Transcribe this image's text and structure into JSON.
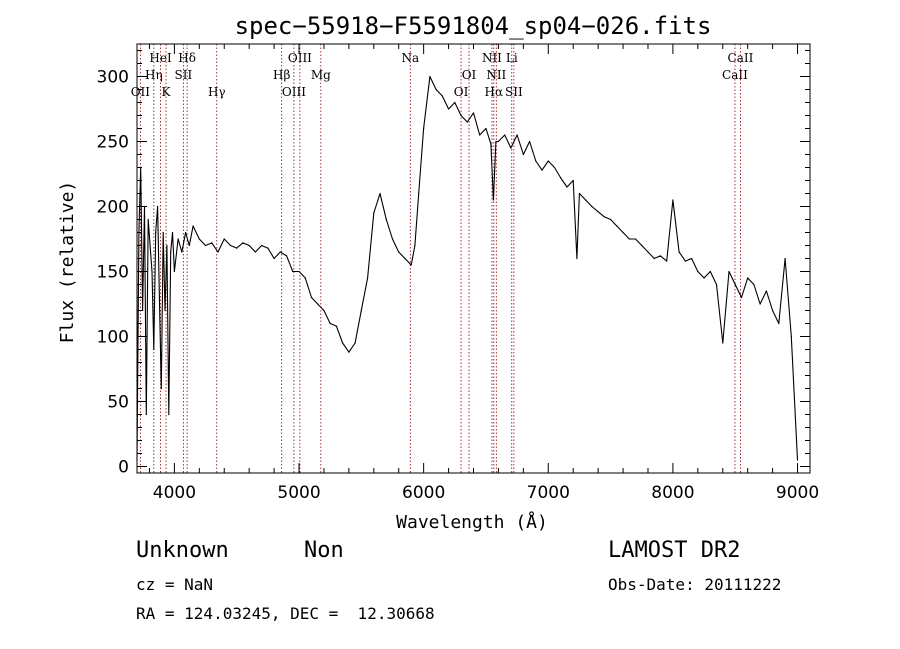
{
  "chart_data": {
    "type": "line",
    "title": "spec−55918−F5591804_sp04−026.fits",
    "xlabel": "Wavelength (Å)",
    "ylabel": "Flux (relative)",
    "xlim": [
      3700,
      9100
    ],
    "ylim": [
      -5,
      325
    ],
    "xticks": [
      4000,
      5000,
      6000,
      7000,
      8000,
      9000
    ],
    "yticks": [
      0,
      50,
      100,
      150,
      200,
      250,
      300
    ],
    "grid": false,
    "line_color": "#000000",
    "marker_color": "#8b0000",
    "series": [
      {
        "x": [
          3700,
          3715,
          3730,
          3745,
          3760,
          3775,
          3790,
          3805,
          3820,
          3835,
          3850,
          3865,
          3880,
          3895,
          3910,
          3925,
          3940,
          3955,
          3970,
          3985,
          4000,
          4030,
          4060,
          4090,
          4120,
          4150,
          4200,
          4250,
          4300,
          4350,
          4400,
          4450,
          4500,
          4550,
          4600,
          4650,
          4700,
          4750,
          4800,
          4850,
          4900,
          4950,
          5000,
          5050,
          5100,
          5150,
          5200,
          5250,
          5300,
          5350,
          5400,
          5450,
          5500,
          5550,
          5600,
          5650,
          5700,
          5750,
          5800,
          5850,
          5900,
          5930,
          5960,
          6000,
          6050,
          6100,
          6150,
          6200,
          6250,
          6300,
          6350,
          6400,
          6450,
          6500,
          6540,
          6560,
          6580,
          6600,
          6650,
          6700,
          6750,
          6800,
          6850,
          6900,
          6950,
          7000,
          7050,
          7100,
          7150,
          7200,
          7230,
          7250,
          7300,
          7350,
          7400,
          7450,
          7500,
          7550,
          7600,
          7650,
          7700,
          7750,
          7800,
          7850,
          7900,
          7950,
          8000,
          8050,
          8100,
          8150,
          8200,
          8250,
          8300,
          8350,
          8400,
          8450,
          8500,
          8550,
          8600,
          8650,
          8700,
          8750,
          8800,
          8850,
          8900,
          8950,
          9000
        ],
        "values": [
          5,
          180,
          230,
          120,
          200,
          40,
          190,
          170,
          150,
          90,
          180,
          200,
          130,
          60,
          180,
          120,
          170,
          40,
          165,
          180,
          150,
          175,
          165,
          180,
          170,
          185,
          175,
          170,
          172,
          165,
          175,
          170,
          168,
          172,
          170,
          165,
          170,
          168,
          160,
          165,
          162,
          150,
          150,
          145,
          130,
          125,
          120,
          110,
          108,
          95,
          88,
          95,
          120,
          145,
          195,
          210,
          190,
          175,
          165,
          160,
          155,
          170,
          210,
          260,
          300,
          290,
          285,
          275,
          280,
          270,
          265,
          272,
          255,
          260,
          248,
          205,
          250,
          250,
          255,
          245,
          255,
          240,
          250,
          235,
          228,
          235,
          230,
          222,
          215,
          220,
          160,
          210,
          205,
          200,
          196,
          192,
          190,
          185,
          180,
          175,
          175,
          170,
          165,
          160,
          162,
          158,
          205,
          165,
          158,
          160,
          150,
          145,
          150,
          140,
          95,
          150,
          140,
          130,
          145,
          140,
          125,
          135,
          120,
          110,
          160,
          100,
          5
        ]
      }
    ],
    "lines": [
      {
        "x": 3727,
        "labels": [
          {
            "text": "OII",
            "row": 3
          }
        ]
      },
      {
        "x": 3835,
        "labels": [
          {
            "text": "Hη",
            "row": 2
          }
        ]
      },
      {
        "x": 3889,
        "labels": [
          {
            "text": "HeI",
            "row": 1
          }
        ]
      },
      {
        "x": 3933,
        "labels": [
          {
            "text": "K",
            "row": 3
          }
        ]
      },
      {
        "x": 4072,
        "labels": [
          {
            "text": "SII",
            "row": 2
          }
        ]
      },
      {
        "x": 4102,
        "labels": [
          {
            "text": "Hδ",
            "row": 1
          }
        ]
      },
      {
        "x": 4340,
        "labels": [
          {
            "text": "Hγ",
            "row": 3
          }
        ]
      },
      {
        "x": 4861,
        "labels": [
          {
            "text": "Hβ",
            "row": 2
          }
        ]
      },
      {
        "x": 4959,
        "labels": [
          {
            "text": "OIII",
            "row": 3
          }
        ]
      },
      {
        "x": 5007,
        "labels": [
          {
            "text": "OIII",
            "row": 1
          }
        ]
      },
      {
        "x": 5175,
        "labels": [
          {
            "text": "Mg",
            "row": 2
          }
        ]
      },
      {
        "x": 5893,
        "labels": [
          {
            "text": "Na",
            "row": 1
          }
        ]
      },
      {
        "x": 6300,
        "labels": [
          {
            "text": "OI",
            "row": 3
          }
        ]
      },
      {
        "x": 6364,
        "labels": [
          {
            "text": "OI",
            "row": 2
          }
        ]
      },
      {
        "x": 6548,
        "labels": [
          {
            "text": "NII",
            "row": 1
          }
        ]
      },
      {
        "x": 6563,
        "labels": [
          {
            "text": "Hα",
            "row": 3
          }
        ]
      },
      {
        "x": 6583,
        "labels": [
          {
            "text": "NII",
            "row": 2
          }
        ]
      },
      {
        "x": 6707,
        "labels": [
          {
            "text": "Li",
            "row": 1
          }
        ]
      },
      {
        "x": 6724,
        "labels": [
          {
            "text": "SII",
            "row": 3
          }
        ]
      },
      {
        "x": 8498,
        "labels": [
          {
            "text": "CaII",
            "row": 2
          }
        ]
      },
      {
        "x": 8542,
        "labels": [
          {
            "text": "CaII",
            "row": 1
          }
        ]
      }
    ]
  },
  "info": {
    "class": "Unknown",
    "subclass": "Non",
    "cz": "cz = NaN",
    "radec": "RA = 124.03245, DEC =  12.30668",
    "survey": "LAMOST DR2",
    "obsdate": "Obs-Date: 20111222"
  }
}
